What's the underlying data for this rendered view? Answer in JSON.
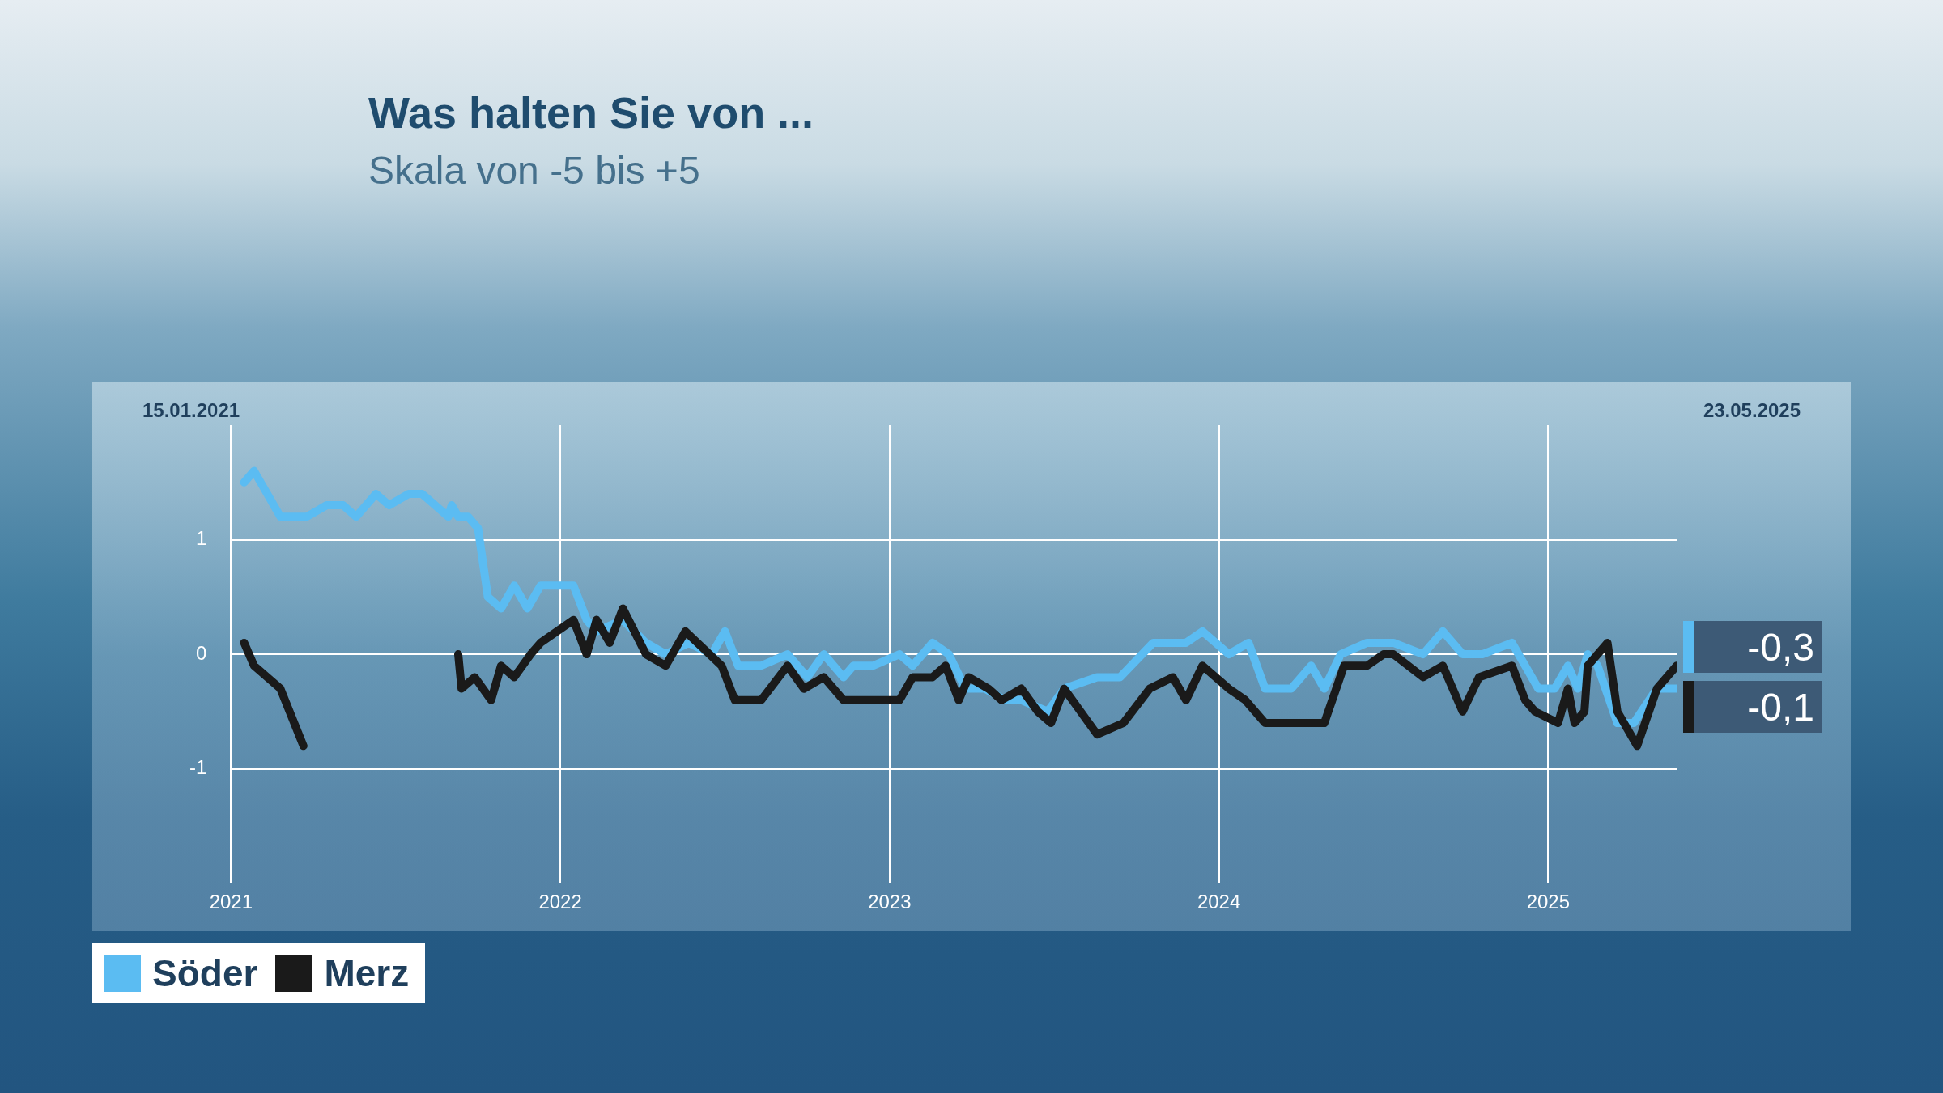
{
  "chart_data": {
    "type": "line",
    "title": "Was halten Sie von ...",
    "subtitle": "Skala von -5 bis +5",
    "annotations": [
      "15.01.2021",
      "23.05.2025"
    ],
    "xlim": [
      2021,
      2025.39
    ],
    "xticks": [
      2021,
      2022,
      2023,
      2024,
      2025
    ],
    "ylim": [
      -2,
      2
    ],
    "yticks": [
      -1,
      0,
      1
    ],
    "grid": true,
    "legend": "bottom left",
    "marker": "none",
    "line_style": "solid",
    "series": [
      {
        "name": "Söder",
        "color": "#5bbcf2",
        "x": [
          2021.04,
          2021.07,
          2021.15,
          2021.23,
          2021.29,
          2021.34,
          2021.38,
          2021.44,
          2021.48,
          2021.54,
          2021.58,
          2021.66,
          2021.67,
          2021.69,
          2021.72,
          2021.75,
          2021.78,
          2021.82,
          2021.86,
          2021.9,
          2021.94,
          2022.04,
          2022.08,
          2022.11,
          2022.19,
          2022.26,
          2022.32,
          2022.39,
          2022.46,
          2022.5,
          2022.54,
          2022.61,
          2022.69,
          2022.75,
          2022.8,
          2022.86,
          2022.89,
          2022.95,
          2023.03,
          2023.07,
          2023.13,
          2023.18,
          2023.23,
          2023.29,
          2023.35,
          2023.4,
          2023.48,
          2023.53,
          2023.63,
          2023.7,
          2023.8,
          2023.9,
          2023.95,
          2024.03,
          2024.09,
          2024.14,
          2024.22,
          2024.28,
          2024.32,
          2024.37,
          2024.45,
          2024.53,
          2024.62,
          2024.68,
          2024.74,
          2024.8,
          2024.89,
          2024.97,
          2025.02,
          2025.06,
          2025.09,
          2025.12,
          2025.15,
          2025.21,
          2025.26,
          2025.33,
          2025.39
        ],
        "values": [
          1.5,
          1.6,
          1.2,
          1.2,
          1.3,
          1.3,
          1.2,
          1.4,
          1.3,
          1.4,
          1.4,
          1.2,
          1.3,
          1.2,
          1.2,
          1.1,
          0.5,
          0.4,
          0.6,
          0.4,
          0.6,
          0.6,
          0.3,
          0.2,
          0.3,
          0.1,
          0,
          0.1,
          0,
          0.2,
          -0.1,
          -0.1,
          0,
          -0.2,
          0,
          -0.2,
          -0.1,
          -0.1,
          0,
          -0.1,
          0.1,
          0,
          -0.3,
          -0.3,
          -0.4,
          -0.4,
          -0.5,
          -0.3,
          -0.2,
          -0.2,
          0.1,
          0.1,
          0.2,
          0,
          0.1,
          -0.3,
          -0.3,
          -0.1,
          -0.3,
          0,
          0.1,
          0.1,
          0,
          0.2,
          0,
          0,
          0.1,
          -0.3,
          -0.3,
          -0.1,
          -0.3,
          0,
          -0.1,
          -0.6,
          -0.6,
          -0.3,
          -0.3
        ],
        "value_labels": [
          null,
          null,
          null,
          null,
          null,
          null,
          null,
          null,
          null,
          null,
          null,
          null,
          null,
          null,
          null,
          null,
          null,
          null,
          null,
          null,
          null,
          null,
          null,
          null,
          null,
          null,
          null,
          null,
          null,
          null,
          null,
          null,
          null,
          null,
          null,
          null,
          null,
          null,
          null,
          null,
          null,
          null,
          null,
          null,
          null,
          null,
          null,
          null,
          null,
          null,
          null,
          null,
          null,
          null,
          null,
          null,
          null,
          null,
          null,
          null,
          null,
          null,
          null,
          null,
          null,
          null,
          null,
          null,
          null,
          null,
          null,
          null,
          null,
          null,
          null,
          null,
          "-0,3"
        ]
      },
      {
        "name": "Merz",
        "color": "#1a1a1a",
        "x": [
          2021.04,
          2021.07,
          2021.15,
          2021.22,
          2021.45,
          2021.69,
          2021.7,
          2021.74,
          2021.79,
          2021.82,
          2021.86,
          2021.91,
          2021.94,
          2022.04,
          2022.08,
          2022.11,
          2022.15,
          2022.19,
          2022.26,
          2022.32,
          2022.38,
          2022.49,
          2022.53,
          2022.61,
          2022.69,
          2022.74,
          2022.8,
          2022.86,
          2023.03,
          2023.07,
          2023.13,
          2023.17,
          2023.21,
          2023.24,
          2023.3,
          2023.34,
          2023.4,
          2023.45,
          2023.49,
          2023.53,
          2023.63,
          2023.71,
          2023.79,
          2023.86,
          2023.9,
          2023.95,
          2024.03,
          2024.08,
          2024.14,
          2024.32,
          2024.38,
          2024.45,
          2024.5,
          2024.53,
          2024.62,
          2024.68,
          2024.74,
          2024.79,
          2024.89,
          2024.93,
          2024.96,
          2025.03,
          2025.06,
          2025.08,
          2025.11,
          2025.12,
          2025.18,
          2025.21,
          2025.27,
          2025.33,
          2025.39
        ],
        "values": [
          0.1,
          -0.1,
          -0.3,
          -0.8,
          null,
          0,
          -0.3,
          -0.2,
          -0.4,
          -0.1,
          -0.2,
          0,
          0.1,
          0.3,
          0,
          0.3,
          0.1,
          0.4,
          0,
          -0.1,
          0.2,
          -0.1,
          -0.4,
          -0.4,
          -0.1,
          -0.3,
          -0.2,
          -0.4,
          -0.4,
          -0.2,
          -0.2,
          -0.1,
          -0.4,
          -0.2,
          -0.3,
          -0.4,
          -0.3,
          -0.5,
          -0.6,
          -0.3,
          -0.7,
          -0.6,
          -0.3,
          -0.2,
          -0.4,
          -0.1,
          -0.3,
          -0.4,
          -0.6,
          -0.6,
          -0.1,
          -0.1,
          0,
          0,
          -0.2,
          -0.1,
          -0.5,
          -0.2,
          -0.1,
          -0.4,
          -0.5,
          -0.6,
          -0.3,
          -0.6,
          -0.5,
          -0.1,
          0.1,
          -0.5,
          -0.8,
          -0.3,
          -0.1
        ],
        "value_labels": [
          null,
          null,
          null,
          null,
          null,
          null,
          null,
          null,
          null,
          null,
          null,
          null,
          null,
          null,
          null,
          null,
          null,
          null,
          null,
          null,
          null,
          null,
          null,
          null,
          null,
          null,
          null,
          null,
          null,
          null,
          null,
          null,
          null,
          null,
          null,
          null,
          null,
          null,
          null,
          null,
          null,
          null,
          null,
          null,
          null,
          null,
          null,
          null,
          null,
          null,
          null,
          null,
          null,
          null,
          null,
          null,
          null,
          null,
          null,
          null,
          null,
          null,
          null,
          null,
          null,
          null,
          null,
          null,
          null,
          null,
          "-0,1"
        ]
      }
    ]
  }
}
